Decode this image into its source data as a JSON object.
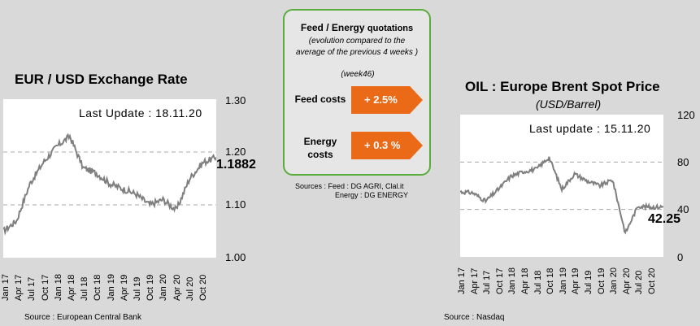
{
  "eur_panel": {
    "title": "EUR / USD Exchange Rate",
    "last_update": "Last Update : 18.11.20",
    "last_value": "1.1882",
    "source": "Source : European Central Bank",
    "y_ticks": [
      "1.30",
      "1.20",
      "1.10",
      "1.00"
    ]
  },
  "oil_panel": {
    "title": "OIL : Europe Brent Spot Price",
    "subtitle": "(USD/Barrel)",
    "last_update": "Last update : 15.11.20",
    "last_value": "42.25",
    "source": "Source : Nasdaq",
    "y_ticks": [
      "120",
      "80",
      "40",
      "0"
    ]
  },
  "quotations": {
    "title_a": "Feed / Energy",
    "title_b": "quotations",
    "note_line1": "(evolution compared to the",
    "note_line2": "average of the previous 4 weeks )",
    "week": "(week46)",
    "feed_label": "Feed costs",
    "feed_value": "+ 2.5%",
    "energy_label_1": "Energy",
    "energy_label_2": "costs",
    "energy_value": "+ 0.3 %",
    "sources_1": "Sources : Feed : DG AGRI, Clal.it",
    "sources_2": "Energy : DG ENERGY",
    "arrow_color": "#ea6a18",
    "border_color": "#5aac3c"
  },
  "chart_data": [
    {
      "type": "line",
      "title": "EUR / USD Exchange Rate",
      "categories": [
        "Jan 17",
        "Apr 17",
        "Jul 17",
        "Oct 17",
        "Jan 18",
        "Apr 18",
        "Jul 18",
        "Oct 18",
        "Jan 19",
        "Apr 19",
        "Jul 19",
        "Oct 19",
        "Jan 20",
        "Apr 20",
        "Jul 20",
        "Oct 20"
      ],
      "x": [
        "2017-01",
        "2017-04",
        "2017-07",
        "2017-10",
        "2018-01",
        "2018-04",
        "2018-07",
        "2018-10",
        "2019-01",
        "2019-04",
        "2019-07",
        "2019-10",
        "2020-01",
        "2020-04",
        "2020-07",
        "2020-10",
        "2020-11"
      ],
      "series": [
        {
          "values": [
            1.05,
            1.07,
            1.14,
            1.18,
            1.21,
            1.23,
            1.17,
            1.16,
            1.14,
            1.13,
            1.12,
            1.1,
            1.11,
            1.09,
            1.15,
            1.18,
            1.19
          ]
        }
      ],
      "ylim": [
        1.0,
        1.3
      ],
      "yticks": [
        1.0,
        1.1,
        1.2,
        1.3
      ],
      "last_value": 1.1882,
      "grid": "dashed horizontal"
    },
    {
      "type": "line",
      "title": "OIL : Europe Brent Spot Price",
      "subtitle": "(USD/Barrel)",
      "categories": [
        "Jan 17",
        "Apr 17",
        "Jul 17",
        "Oct 17",
        "Jan 18",
        "Apr 18",
        "Jul 18",
        "Oct 18",
        "Jan 19",
        "Apr 19",
        "Jul 19",
        "Oct 19",
        "Jan 20",
        "Apr 20",
        "Jul 20",
        "Oct 20"
      ],
      "x": [
        "2017-01",
        "2017-04",
        "2017-07",
        "2017-10",
        "2018-01",
        "2018-04",
        "2018-07",
        "2018-10",
        "2019-01",
        "2019-04",
        "2019-07",
        "2019-10",
        "2020-01",
        "2020-04",
        "2020-07",
        "2020-10",
        "2020-11"
      ],
      "series": [
        {
          "values": [
            55,
            54,
            47,
            57,
            68,
            72,
            74,
            84,
            57,
            70,
            64,
            60,
            65,
            20,
            43,
            42,
            42.25
          ]
        }
      ],
      "ylim": [
        0,
        120
      ],
      "yticks": [
        0,
        40,
        80,
        120
      ],
      "last_value": 42.25,
      "grid": "dashed horizontal"
    }
  ]
}
